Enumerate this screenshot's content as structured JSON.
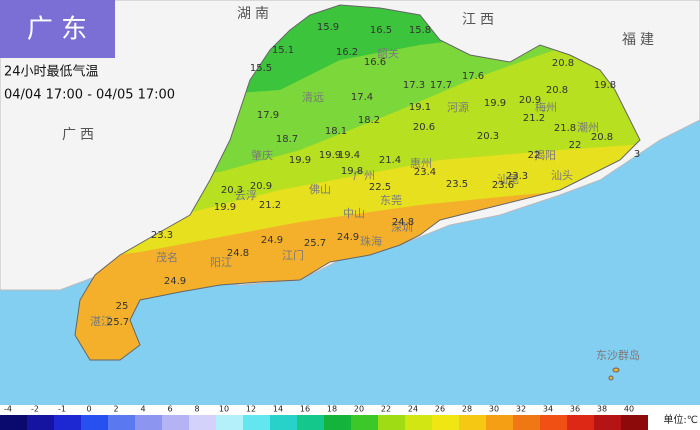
{
  "header": {
    "title": "广 东",
    "subtitle": "24小时最低气温",
    "period": "04/04 17:00 - 04/05 17:00"
  },
  "regions": [
    {
      "label": "湖南"
    },
    {
      "label": "江西"
    },
    {
      "label": "福建"
    },
    {
      "label": "广西"
    }
  ],
  "cities": [
    "韶关",
    "清远",
    "河源",
    "梅州",
    "潮州",
    "揭阳",
    "汕头",
    "肇庆",
    "广州",
    "惠州",
    "汕尾",
    "云浮",
    "佛山",
    "东莞",
    "中山",
    "深圳",
    "珠海",
    "江门",
    "阳江",
    "茂名",
    "湛江",
    "东沙群岛"
  ],
  "stations": [
    "15.9",
    "16.5",
    "15.8",
    "15.1",
    "16.2",
    "16.6",
    "15.5",
    "17.6",
    "20.8",
    "17.4",
    "17.3",
    "17.7",
    "20.8",
    "19.8",
    "20.9",
    "19.9",
    "19.1",
    "18.2",
    "17.9",
    "18.7",
    "18.1",
    "20.6",
    "21.2",
    "21.8",
    "20.8",
    "20.3",
    "19.9",
    "19.9",
    "19.4",
    "21.4",
    "22",
    "22",
    "19.8",
    "23.4",
    "22.5",
    "23.3",
    "23.6",
    "23.5",
    "3",
    "20.3",
    "20.9",
    "19.9",
    "21.2",
    "24.8",
    "24.9",
    "25.7",
    "24.9",
    "24.8",
    "23.3",
    "24.9",
    "25",
    "25.7"
  ],
  "legend": {
    "ticks": [
      -4,
      -2,
      -1,
      0,
      2,
      4,
      6,
      8,
      10,
      12,
      14,
      16,
      18,
      20,
      22,
      24,
      26,
      28,
      30,
      32,
      34,
      36,
      38,
      40
    ],
    "colors": [
      "#0a0a6e",
      "#1414a0",
      "#1e28d2",
      "#2850f0",
      "#5a78f0",
      "#8c96f0",
      "#b4b4f5",
      "#d2d2fa",
      "#b4f0fa",
      "#64e6f0",
      "#28d2c8",
      "#14c88c",
      "#14b43c",
      "#3cc828",
      "#a0dc14",
      "#d2e614",
      "#f0e614",
      "#f5c814",
      "#f5a014",
      "#f07814",
      "#f05014",
      "#dc2814",
      "#b41414",
      "#8c0a0a"
    ],
    "unit": "单位:℃"
  }
}
